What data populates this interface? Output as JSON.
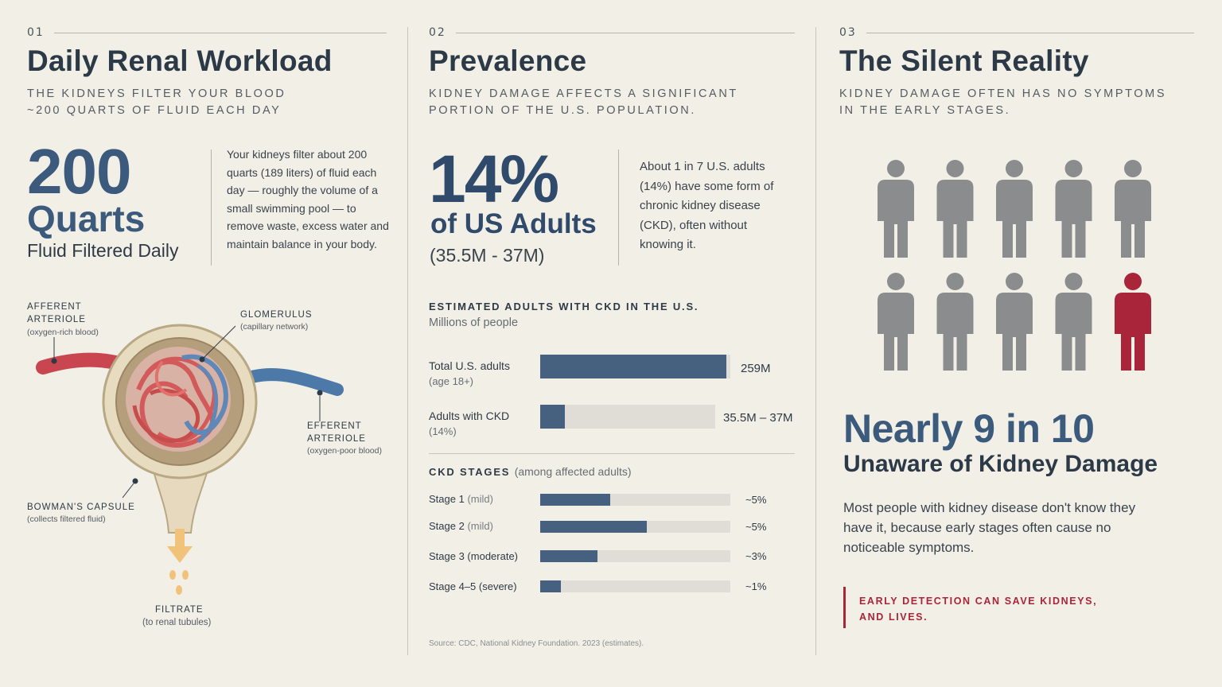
{
  "colors": {
    "background": "#f2efe7",
    "primary_blue": "#3c5a7c",
    "bar_blue": "#46617f",
    "accent_red": "#a9253a",
    "person_gray": "#8a8c8e",
    "text_dark": "#2e3a46"
  },
  "section1": {
    "number": "01",
    "title": "Daily Renal Workload",
    "subtitle_line1": "THE KIDNEYS FILTER YOUR BLOOD",
    "subtitle_line2": "~200 QUARTS OF FLUID EACH DAY",
    "big_number": "200",
    "big_unit": "Quarts",
    "big_caption": "Fluid Filtered Daily",
    "body": "Your kidneys filter about 200 quarts (189 liters) of fluid each day — roughly the volume of a small swimming pool — to remove waste, excess water and maintain balance in your body.",
    "diagram": {
      "afferent_title_1": "AFFERENT",
      "afferent_title_2": "ARTERIOLE",
      "afferent_sub": "(oxygen-rich blood)",
      "glomerulus_title": "GLOMERULUS",
      "glomerulus_sub": "(capillary network)",
      "efferent_title_1": "EFFERENT",
      "efferent_title_2": "ARTERIOLE",
      "efferent_sub": "(oxygen-poor blood)",
      "bowman_title": "BOWMAN'S CAPSULE",
      "bowman_sub": "(collects filtered fluid)",
      "filtrate_title": "FILTRATE",
      "filtrate_sub": "(to renal tubules)"
    }
  },
  "section2": {
    "number": "02",
    "title": "Prevalence",
    "subtitle_line1": "KIDNEY DAMAGE AFFECTS A SIGNIFICANT",
    "subtitle_line2": "PORTION OF THE U.S. POPULATION.",
    "big_number": "14%",
    "big_caption": "of US Adults",
    "range": "(35.5M - 37M)",
    "body": "About 1 in 7 U.S. adults (14%) have some form of chronic kidney disease (CKD), often without knowing it.",
    "estimated_title": "ESTIMATED ADULTS WITH CKD IN THE U.S.",
    "estimated_sub": "Millions of people",
    "bars": [
      {
        "label": "Total U.S. adults",
        "sublabel": "(age 18+)",
        "value_text": "259M",
        "fraction": 0.98
      },
      {
        "label": "Adults with CKD",
        "sublabel": "(14%)",
        "value_text": "35.5M – 37M",
        "fraction": 0.14
      }
    ],
    "stages_title": "CKD STAGES",
    "stages_sub": "(among affected adults)",
    "stages": [
      {
        "label": "Stage 1",
        "qualifier": "(mild)",
        "value_text": "~5%",
        "fraction": 0.37
      },
      {
        "label": "Stage 2",
        "qualifier": "(mild)",
        "value_text": "~5%",
        "fraction": 0.56
      },
      {
        "label": "Stage 3 (moderate)",
        "qualifier": "",
        "value_text": "~3%",
        "fraction": 0.3
      },
      {
        "label": "Stage 4–5 (severe)",
        "qualifier": "",
        "value_text": "~1%",
        "fraction": 0.11
      }
    ],
    "source": "Source: CDC, National Kidney Foundation. 2023 (estimates)."
  },
  "section3": {
    "number": "03",
    "title": "The Silent Reality",
    "subtitle_line1": "KIDNEY DAMAGE OFTEN HAS NO SYMPTOMS",
    "subtitle_line2": "IN THE EARLY STAGES.",
    "people_total": 10,
    "people_highlighted": 1,
    "big_text": "Nearly 9 in 10",
    "big_caption": "Unaware of Kidney Damage",
    "body": "Most people with kidney disease don't know they have it, because early stages often cause no noticeable symptoms.",
    "callout_line1": "EARLY DETECTION CAN SAVE KIDNEYS,",
    "callout_line2": "AND LIVES."
  }
}
